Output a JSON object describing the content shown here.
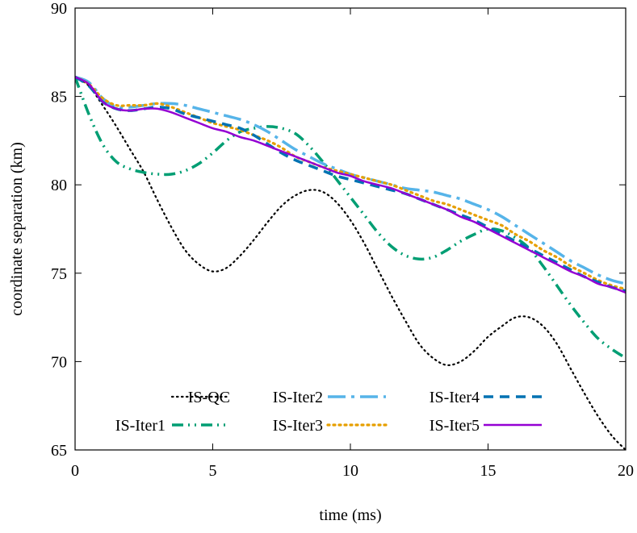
{
  "chart_data": {
    "type": "line",
    "title": "",
    "xlabel": "time (ms)",
    "ylabel": "coordinate separation (km)",
    "xlim": [
      0,
      20
    ],
    "ylim": [
      65,
      90
    ],
    "xticks": [
      0,
      5,
      10,
      15,
      20
    ],
    "yticks": [
      65,
      70,
      75,
      80,
      85,
      90
    ],
    "grid": false,
    "legend_position": "bottom-left",
    "series": [
      {
        "name": "IS-QC",
        "color": "#000000",
        "style": "dotted",
        "x": [
          0,
          0.5,
          1,
          1.5,
          2,
          2.5,
          3,
          3.5,
          4,
          4.5,
          5,
          5.5,
          6,
          6.5,
          7,
          7.5,
          8,
          8.5,
          9,
          9.5,
          10,
          10.5,
          11,
          11.5,
          12,
          12.5,
          13,
          13.5,
          14,
          14.5,
          15,
          15.5,
          16,
          16.5,
          17,
          17.5,
          18,
          18.5,
          19,
          19.5,
          20
        ],
        "y": [
          86.1,
          85.6,
          84.5,
          83.3,
          82.0,
          80.7,
          79.1,
          77.6,
          76.3,
          75.5,
          75.1,
          75.3,
          76.0,
          76.9,
          77.9,
          78.8,
          79.4,
          79.7,
          79.6,
          79.0,
          78.0,
          76.7,
          75.2,
          73.7,
          72.3,
          71.0,
          70.2,
          69.8,
          70.0,
          70.6,
          71.4,
          72.0,
          72.5,
          72.5,
          72.0,
          71.0,
          69.6,
          68.2,
          66.9,
          65.8,
          65.0
        ]
      },
      {
        "name": "IS-Iter1",
        "color": "#009e73",
        "style": "dash-dot-dot",
        "x": [
          0,
          0.5,
          1,
          1.5,
          2,
          2.5,
          3,
          3.5,
          4,
          4.5,
          5,
          5.5,
          6,
          6.5,
          7,
          7.5,
          8,
          8.5,
          9,
          9.5,
          10,
          10.5,
          11,
          11.5,
          12,
          12.5,
          13,
          13.5,
          14,
          14.5,
          15,
          15.5,
          16,
          16.5,
          17,
          17.5,
          18,
          18.5,
          19,
          19.5,
          20
        ],
        "y": [
          86.1,
          84.0,
          82.3,
          81.3,
          80.9,
          80.7,
          80.6,
          80.6,
          80.8,
          81.2,
          81.8,
          82.5,
          83.0,
          83.2,
          83.3,
          83.2,
          82.9,
          82.2,
          81.3,
          80.3,
          79.3,
          78.3,
          77.3,
          76.5,
          76.0,
          75.8,
          75.9,
          76.3,
          76.8,
          77.2,
          77.5,
          77.4,
          77.0,
          76.4,
          75.4,
          74.3,
          73.2,
          72.2,
          71.3,
          70.7,
          70.2
        ]
      },
      {
        "name": "IS-Iter2",
        "color": "#56b4e9",
        "style": "long-dash-dot",
        "x": [
          0,
          0.5,
          1,
          1.5,
          2,
          2.5,
          3,
          3.5,
          4,
          4.5,
          5,
          5.5,
          6,
          6.5,
          7,
          7.5,
          8,
          8.5,
          9,
          9.5,
          10,
          10.5,
          11,
          11.5,
          12,
          12.5,
          13,
          13.5,
          14,
          14.5,
          15,
          15.5,
          16,
          16.5,
          17,
          17.5,
          18,
          18.5,
          19,
          19.5,
          20
        ],
        "y": [
          86.1,
          85.8,
          84.9,
          84.4,
          84.4,
          84.5,
          84.6,
          84.6,
          84.5,
          84.3,
          84.1,
          83.9,
          83.7,
          83.4,
          83.0,
          82.5,
          82.0,
          81.6,
          81.2,
          80.9,
          80.6,
          80.4,
          80.2,
          80.0,
          79.8,
          79.7,
          79.6,
          79.4,
          79.2,
          78.9,
          78.6,
          78.2,
          77.7,
          77.2,
          76.7,
          76.2,
          75.7,
          75.3,
          74.9,
          74.6,
          74.4
        ]
      },
      {
        "name": "IS-Iter3",
        "color": "#e69f00",
        "style": "dotted",
        "x": [
          0,
          0.5,
          1,
          1.5,
          2,
          2.5,
          3,
          3.5,
          4,
          4.5,
          5,
          5.5,
          6,
          6.5,
          7,
          7.5,
          8,
          8.5,
          9,
          9.5,
          10,
          10.5,
          11,
          11.5,
          12,
          12.5,
          13,
          13.5,
          14,
          14.5,
          15,
          15.5,
          16,
          16.5,
          17,
          17.5,
          18,
          18.5,
          19,
          19.5,
          20
        ],
        "y": [
          86.1,
          85.7,
          84.9,
          84.5,
          84.5,
          84.5,
          84.6,
          84.4,
          84.1,
          83.8,
          83.5,
          83.3,
          83.1,
          82.8,
          82.5,
          82.1,
          81.6,
          81.3,
          81.0,
          80.8,
          80.6,
          80.4,
          80.2,
          80.0,
          79.7,
          79.4,
          79.1,
          78.9,
          78.6,
          78.3,
          78.0,
          77.7,
          77.2,
          76.8,
          76.3,
          75.9,
          75.4,
          75.0,
          74.6,
          74.3,
          74.1
        ]
      },
      {
        "name": "IS-Iter4",
        "color": "#0072b2",
        "style": "dashed",
        "x": [
          0,
          0.5,
          1,
          1.5,
          2,
          2.5,
          3,
          3.5,
          4,
          4.5,
          5,
          5.5,
          6,
          6.5,
          7,
          7.5,
          8,
          8.5,
          9,
          9.5,
          10,
          10.5,
          11,
          11.5,
          12,
          12.5,
          13,
          13.5,
          14,
          14.5,
          15,
          15.5,
          16,
          16.5,
          17,
          17.5,
          18,
          18.5,
          19,
          19.5,
          20
        ],
        "y": [
          86.1,
          85.6,
          84.7,
          84.3,
          84.2,
          84.3,
          84.4,
          84.3,
          84.0,
          83.8,
          83.6,
          83.4,
          83.2,
          82.8,
          82.3,
          81.8,
          81.4,
          81.1,
          80.8,
          80.5,
          80.3,
          80.1,
          79.9,
          79.7,
          79.5,
          79.2,
          78.9,
          78.6,
          78.3,
          78.0,
          77.6,
          77.2,
          76.8,
          76.4,
          76.0,
          75.6,
          75.2,
          74.8,
          74.5,
          74.2,
          74.0
        ]
      },
      {
        "name": "IS-Iter5",
        "color": "#9400d3",
        "style": "solid",
        "x": [
          0,
          0.5,
          1,
          1.5,
          2,
          2.5,
          3,
          3.5,
          4,
          4.5,
          5,
          5.5,
          6,
          6.5,
          7,
          7.5,
          8,
          8.5,
          9,
          9.5,
          10,
          10.5,
          11,
          11.5,
          12,
          12.5,
          13,
          13.5,
          14,
          14.5,
          15,
          15.5,
          16,
          16.5,
          17,
          17.5,
          18,
          18.5,
          19,
          19.5,
          20
        ],
        "y": [
          86.1,
          85.7,
          84.7,
          84.3,
          84.2,
          84.3,
          84.3,
          84.1,
          83.8,
          83.5,
          83.2,
          83.0,
          82.7,
          82.5,
          82.2,
          81.9,
          81.6,
          81.3,
          81.0,
          80.7,
          80.5,
          80.2,
          80.0,
          79.8,
          79.5,
          79.2,
          78.9,
          78.6,
          78.2,
          77.9,
          77.5,
          77.1,
          76.7,
          76.3,
          75.9,
          75.5,
          75.1,
          74.8,
          74.4,
          74.2,
          73.9
        ]
      }
    ]
  }
}
